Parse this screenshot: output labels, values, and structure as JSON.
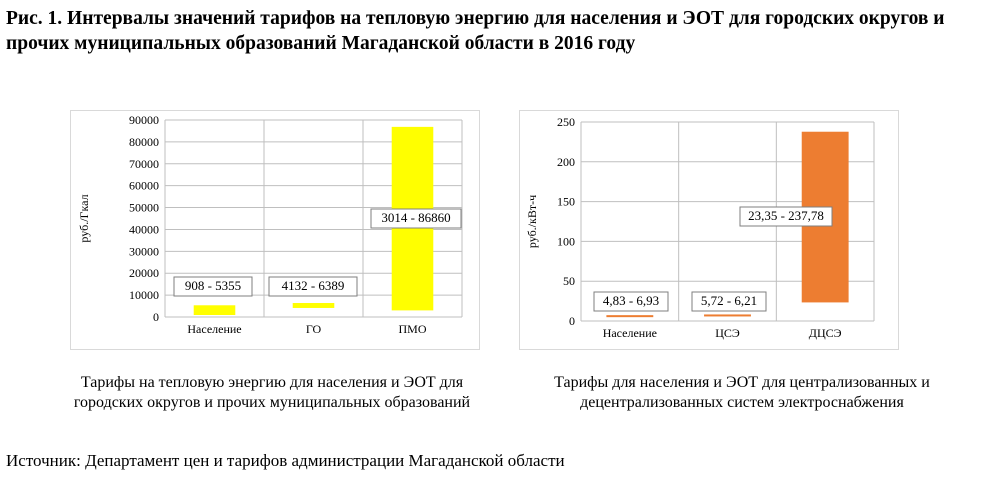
{
  "title": "Рис. 1. Интервалы значений тарифов на тепловую энергию для населения и ЭОТ для городских округов и прочих муниципальных образований Магаданской области в 2016 году",
  "source": "Источник: Департамент цен и тарифов администрации Магаданской области",
  "colors": {
    "left_bars": "#ffff00",
    "right_bars": "#ed7d31",
    "grid": "#bfbfbf",
    "frame": "#d9d9d9"
  },
  "chart_data": [
    {
      "type": "bar",
      "subtype": "floating-range",
      "caption": "Тарифы на тепловую энергию для населения и ЭОТ для городских округов и прочих муниципальных образований",
      "ylabel": "руб./Гкал",
      "xlabel": "",
      "ylim": [
        0,
        90000
      ],
      "yticks": [
        0,
        10000,
        20000,
        30000,
        40000,
        50000,
        60000,
        70000,
        80000,
        90000
      ],
      "grid": true,
      "categories": [
        "Население",
        "ГО",
        "ПМО"
      ],
      "ranges": [
        [
          908,
          5355
        ],
        [
          4132,
          6389
        ],
        [
          3014,
          86860
        ]
      ],
      "labels": [
        "908 - 5355",
        "4132 - 6389",
        "3014 - 86860"
      ],
      "color": "#ffff00"
    },
    {
      "type": "bar",
      "subtype": "floating-range",
      "caption": "Тарифы для населения и ЭОТ для централизованных и децентрализованных систем электроснабжения",
      "ylabel": "руб./кВт-ч",
      "xlabel": "",
      "ylim": [
        0,
        250
      ],
      "yticks": [
        0,
        50,
        100,
        150,
        200,
        250
      ],
      "grid": true,
      "categories": [
        "Население",
        "ЦСЭ",
        "ДЦСЭ"
      ],
      "ranges": [
        [
          4.83,
          6.93
        ],
        [
          5.72,
          6.21
        ],
        [
          23.35,
          237.78
        ]
      ],
      "labels": [
        "4,83 - 6,93",
        "5,72 - 6,21",
        "23,35 - 237,78"
      ],
      "color": "#ed7d31"
    }
  ]
}
